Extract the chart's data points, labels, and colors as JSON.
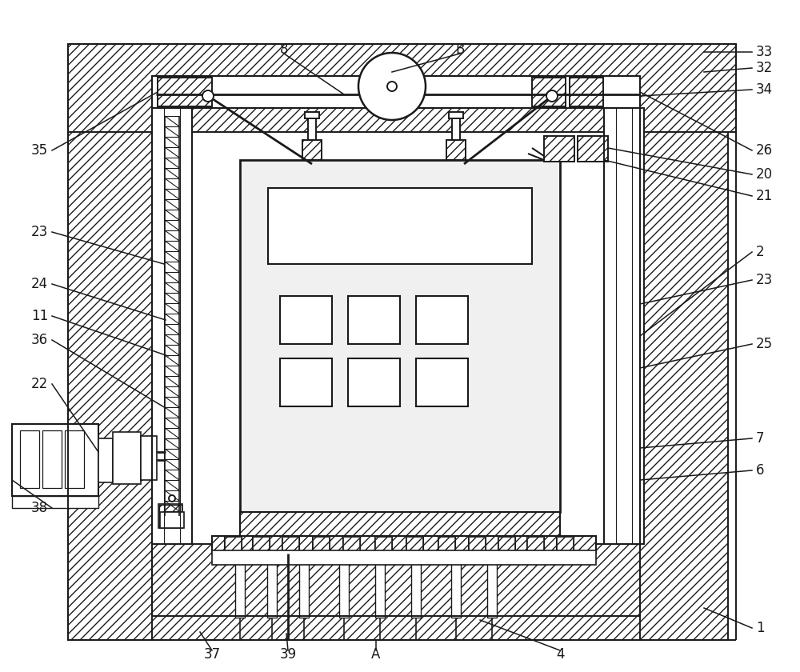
{
  "bg_color": "#ffffff",
  "line_color": "#1a1a1a",
  "fig_width": 10.0,
  "fig_height": 8.4,
  "dpi": 100,
  "hatch_density": "///",
  "lw": 1.4
}
